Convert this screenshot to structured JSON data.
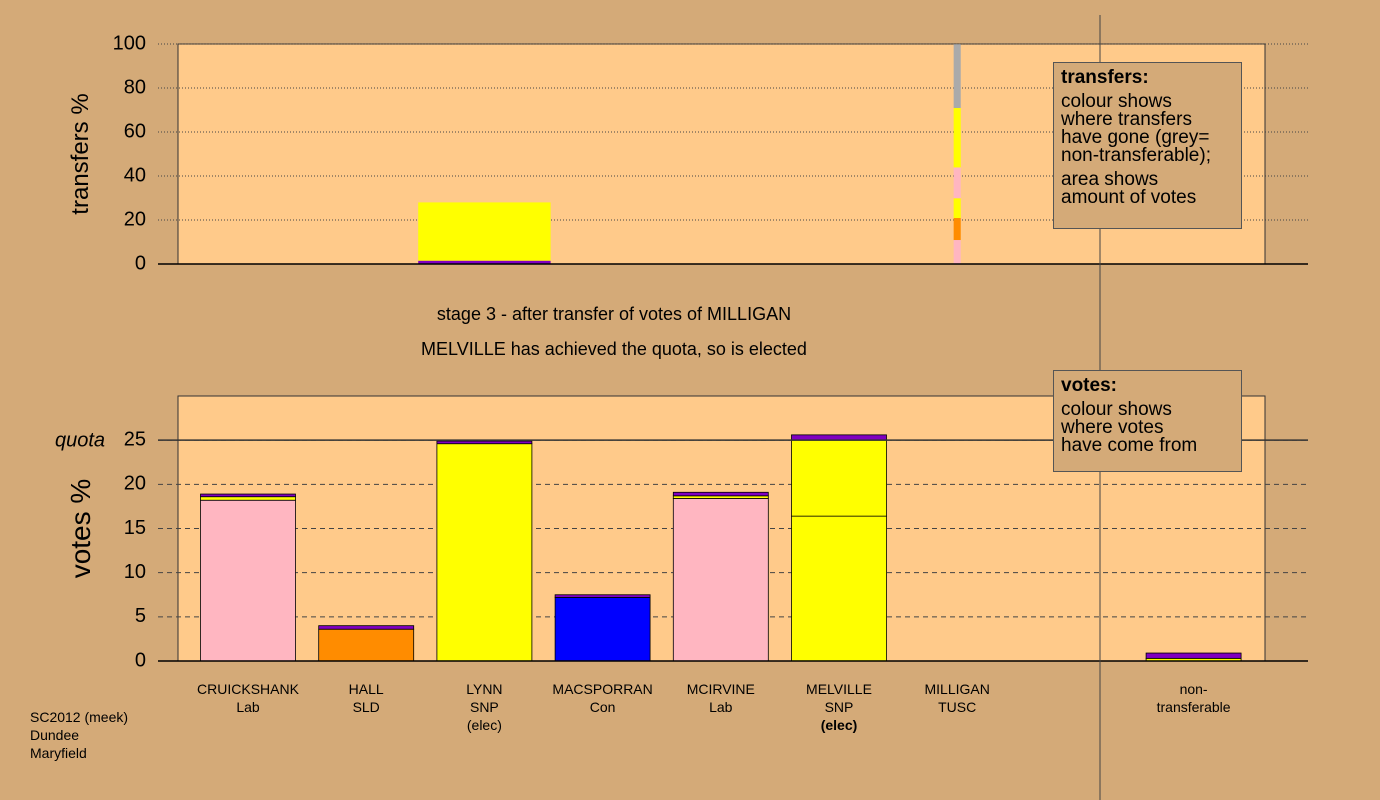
{
  "chart_data": [
    {
      "type": "bar",
      "stacked": true,
      "ylabel": "transfers %",
      "ylim": [
        0,
        100
      ],
      "yticks": [
        0,
        20,
        40,
        60,
        80,
        100
      ],
      "grid": true,
      "categories": [
        null,
        null,
        null,
        null,
        null,
        null,
        null,
        null,
        null
      ],
      "widths": [
        null,
        null,
        1.12,
        null,
        null,
        null,
        0.06,
        null,
        null
      ],
      "series": [
        {
          "colors": [
            null,
            null,
            "#8000c0",
            null,
            null,
            null,
            "#ffb6c1",
            null,
            null
          ],
          "values": [
            null,
            null,
            1.5,
            null,
            null,
            null,
            10.9,
            null,
            null
          ]
        },
        {
          "colors": [
            null,
            null,
            "#ffff00",
            null,
            null,
            null,
            "#ff8c00",
            null,
            null
          ],
          "values": [
            null,
            null,
            26.5,
            null,
            null,
            null,
            10,
            null,
            null
          ]
        },
        {
          "colors": [
            null,
            null,
            null,
            null,
            null,
            null,
            "#ffff00",
            null,
            null
          ],
          "values": [
            null,
            null,
            null,
            null,
            null,
            null,
            9,
            null,
            null
          ]
        },
        {
          "colors": [
            null,
            null,
            null,
            null,
            null,
            null,
            "#ffb6c1",
            null,
            null
          ],
          "values": [
            null,
            null,
            null,
            null,
            null,
            null,
            14,
            null,
            null
          ]
        },
        {
          "colors": [
            null,
            null,
            null,
            null,
            null,
            null,
            "#ffff00",
            null,
            null
          ],
          "values": [
            null,
            null,
            null,
            null,
            null,
            null,
            27,
            null,
            null
          ]
        },
        {
          "colors": [
            null,
            null,
            null,
            null,
            null,
            null,
            "#aaaaaa",
            null,
            null
          ],
          "values": [
            null,
            null,
            null,
            null,
            null,
            null,
            29,
            null,
            null
          ]
        }
      ],
      "legend_box": {
        "title": "transfers:",
        "lines": [
          "colour shows\nwhere transfers\nhave gone (grey=\nnon-transferable);",
          "area shows\namount of votes"
        ]
      }
    },
    {
      "type": "bar",
      "stacked": true,
      "ylabel": "votes %",
      "ylim": [
        0,
        30
      ],
      "yticks": [
        0,
        5,
        10,
        15,
        20,
        25
      ],
      "grid": true,
      "quota": {
        "value": 25,
        "label": "quota"
      },
      "categories": [
        "CRUICKSHANK",
        "HALL",
        "LYNN",
        "MACSPORRAN",
        "MCIRVINE",
        "MELVILLE",
        "MILLIGAN",
        null,
        "non-\ntransferable"
      ],
      "parties": [
        "Lab",
        "SLD",
        "SNP",
        "Con",
        "Lab",
        "SNP",
        "TUSC",
        null,
        null
      ],
      "notes": [
        null,
        null,
        "(elec)",
        null,
        null,
        "(elec)",
        null,
        null,
        null
      ],
      "notes_bold": [
        false,
        false,
        false,
        false,
        false,
        true,
        false,
        false,
        false
      ],
      "series": [
        {
          "colors": [
            "#ffb6c1",
            "#ff8c00",
            "#ffff00",
            "#0000ff",
            "#ffb6c1",
            "#ffff00",
            "#cc0000",
            null,
            null
          ],
          "values": [
            18.2,
            3.6,
            24.6,
            7.2,
            18.4,
            16.4,
            0,
            null,
            null
          ]
        },
        {
          "color": "#ffff00",
          "values": [
            0.4,
            0,
            0,
            0,
            0.3,
            8.6,
            0,
            null,
            0.3
          ]
        },
        {
          "color": "#8000c0",
          "values": [
            0.3,
            0.4,
            0.3,
            0.3,
            0.4,
            0.6,
            0,
            null,
            0.6
          ]
        }
      ],
      "legend_box": {
        "title": "votes:",
        "lines": [
          "colour shows\nwhere votes\nhave come from"
        ]
      }
    }
  ],
  "captions": [
    "stage 3 - after transfer of votes of MILLIGAN",
    "MELVILLE has achieved the quota, so is elected"
  ],
  "footer": "SC2012 (meek)\nDundee\nMaryfield"
}
